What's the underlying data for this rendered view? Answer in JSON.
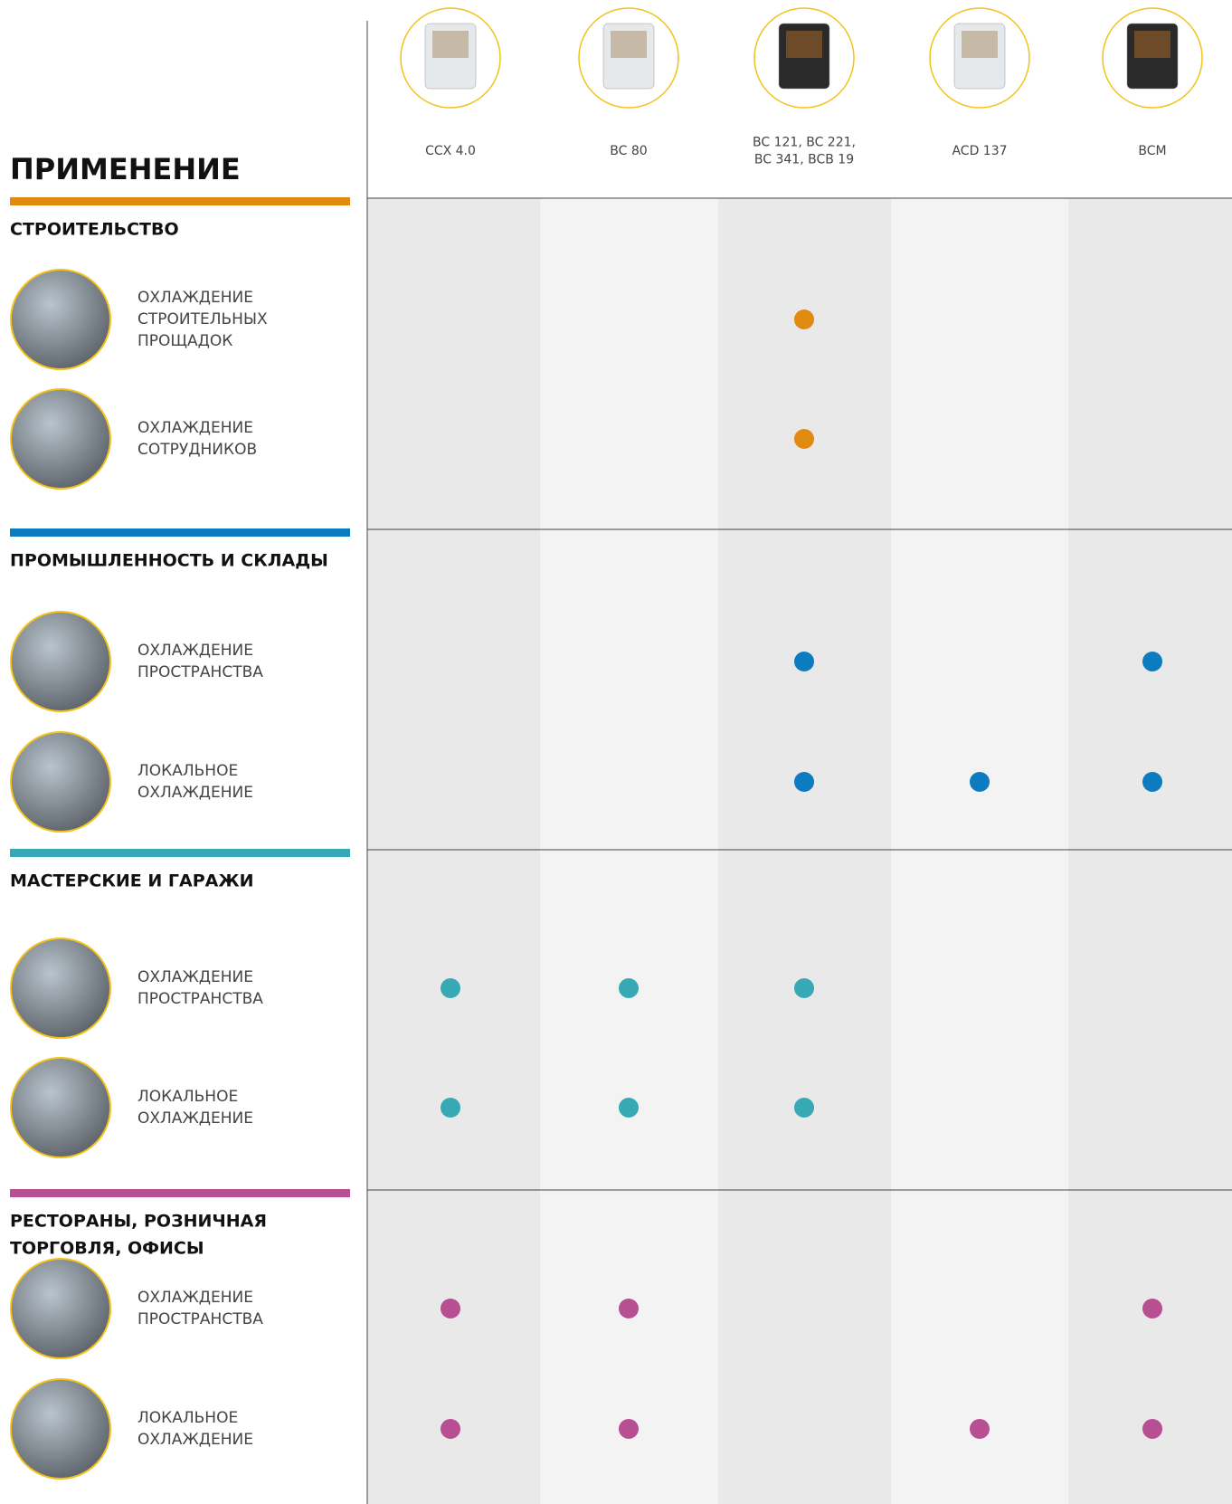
{
  "header": {
    "title": "ПРИМЕНЕНИЕ"
  },
  "products": [
    [
      "CCX 4.0"
    ],
    [
      "BC 80"
    ],
    [
      "BC 121, BC 221,",
      "BC 341, BCB 19"
    ],
    [
      "ACD 137"
    ],
    [
      "BCM"
    ]
  ],
  "sections": [
    {
      "title": [
        "СТРОИТЕЛЬСТВО"
      ],
      "color": "#e08a0f",
      "rows": [
        {
          "label": [
            "ОХЛАЖДЕНИЕ",
            "СТРОИТЕЛЬНЫХ",
            "ПРОЩАДОК"
          ],
          "marks": [
            false,
            false,
            true,
            false,
            false
          ]
        },
        {
          "label": [
            "ОХЛАЖДЕНИЕ",
            "СОТРУДНИКОВ"
          ],
          "marks": [
            false,
            false,
            true,
            false,
            false
          ]
        }
      ]
    },
    {
      "title": [
        "ПРОМЫШЛЕННОСТЬ И СКЛАДЫ"
      ],
      "color": "#0d7bbf",
      "rows": [
        {
          "label": [
            "ОХЛАЖДЕНИЕ",
            "ПРОСТРАНСТВА"
          ],
          "marks": [
            false,
            false,
            true,
            false,
            true
          ]
        },
        {
          "label": [
            "ЛОКАЛЬНОЕ",
            "ОХЛАЖДЕНИЕ"
          ],
          "marks": [
            false,
            false,
            true,
            true,
            true
          ]
        }
      ]
    },
    {
      "title": [
        "МАСТЕРСКИЕ И ГАРАЖИ"
      ],
      "color": "#36a9b5",
      "rows": [
        {
          "label": [
            "ОХЛАЖДЕНИЕ",
            "ПРОСТРАНСТВА"
          ],
          "marks": [
            true,
            true,
            true,
            false,
            false
          ]
        },
        {
          "label": [
            "ЛОКАЛЬНОЕ",
            "ОХЛАЖДЕНИЕ"
          ],
          "marks": [
            true,
            true,
            true,
            false,
            false
          ]
        }
      ]
    },
    {
      "title": [
        "РЕСТОРАНЫ, РОЗНИЧНАЯ",
        "ТОРГОВЛЯ, ОФИСЫ"
      ],
      "color": "#b84f93",
      "rows": [
        {
          "label": [
            "ОХЛАЖДЕНИЕ",
            "ПРОСТРАНСТВА"
          ],
          "marks": [
            true,
            true,
            false,
            false,
            true
          ]
        },
        {
          "label": [
            "ЛОКАЛЬНОЕ",
            "ОХЛАЖДЕНИЕ"
          ],
          "marks": [
            true,
            true,
            false,
            true,
            true
          ]
        }
      ]
    }
  ]
}
